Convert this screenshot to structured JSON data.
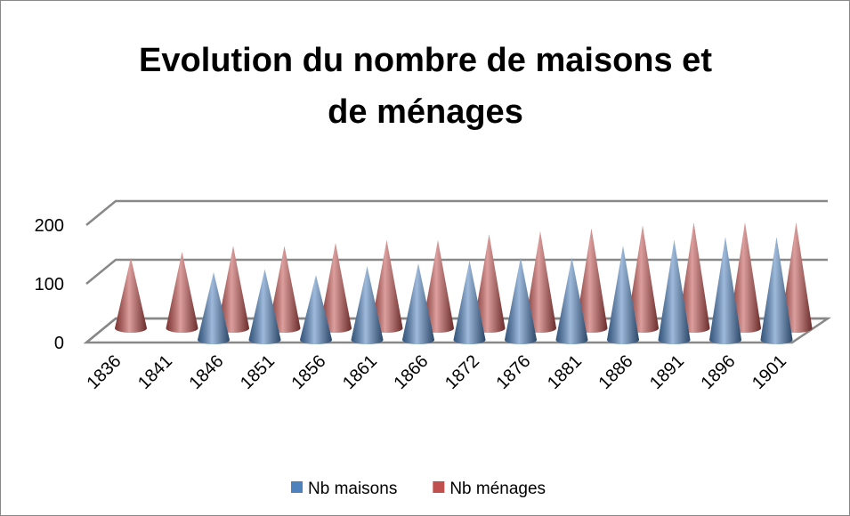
{
  "chart_data": {
    "type": "cone3d",
    "title": [
      "Evolution du nombre de maisons et",
      "de ménages"
    ],
    "categories": [
      "1836",
      "1841",
      "1846",
      "1851",
      "1856",
      "1861",
      "1866",
      "1872",
      "1876",
      "1881",
      "1886",
      "1891",
      "1896",
      "1901"
    ],
    "series": [
      {
        "name": "Nb maisons",
        "color": "#4f81bd",
        "values": [
          null,
          null,
          115,
          120,
          110,
          125,
          130,
          135,
          140,
          140,
          160,
          170,
          175,
          175
        ]
      },
      {
        "name": "Nb ménages",
        "color": "#c0504d",
        "values": [
          120,
          130,
          140,
          140,
          145,
          150,
          150,
          160,
          165,
          170,
          175,
          180,
          180,
          180
        ]
      }
    ],
    "ylim": [
      0,
      200
    ],
    "yticks": [
      0,
      100,
      200
    ],
    "grid": true,
    "legend": "bottom"
  }
}
